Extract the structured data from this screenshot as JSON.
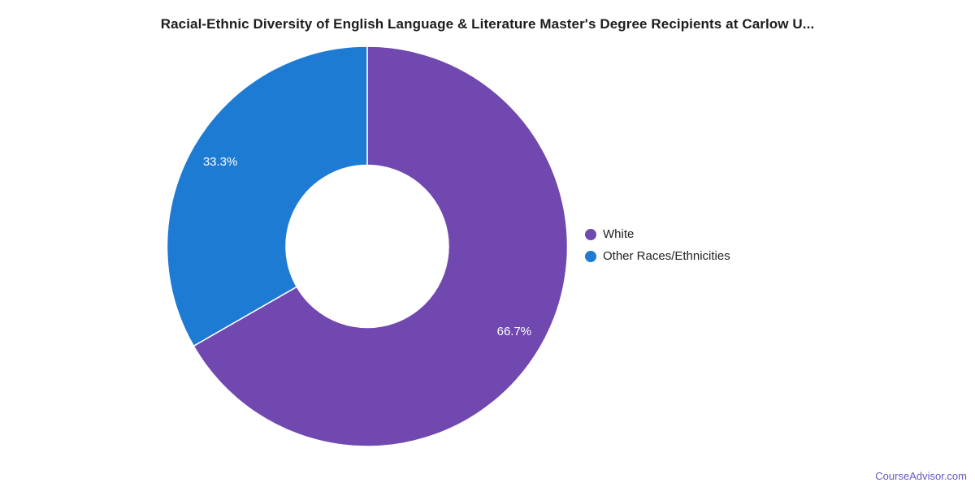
{
  "chart": {
    "title": "Racial-Ethnic Diversity of English Language & Literature Master's Degree Recipients at Carlow U..."
  },
  "chart_data": {
    "type": "pie",
    "subtype": "donut",
    "title": "Racial-Ethnic Diversity of English Language & Literature Master's Degree Recipients at Carlow U...",
    "labels": [
      "White",
      "Other Races/Ethnicities"
    ],
    "values": [
      66.7,
      33.3
    ],
    "value_labels": [
      "66.7%",
      "33.3%"
    ],
    "colors": [
      "#7048b0",
      "#1e7bd4"
    ],
    "start_angle_deg": 0,
    "direction": "clockwise",
    "hole_ratio": 0.41,
    "legend_position": "right",
    "slice_border_color": "#ffffff"
  },
  "legend": {
    "items": [
      {
        "label": "White",
        "color": "#7048b0"
      },
      {
        "label": "Other Races/Ethnicities",
        "color": "#1e7bd4"
      }
    ]
  },
  "footer": {
    "link_text": "CourseAdvisor.com",
    "link_color": "#6457c8"
  },
  "colors": {
    "background": "#ffffff",
    "title_text": "#1d1d1d",
    "legend_text": "#222222",
    "slice_label_text": "#ffffff"
  }
}
